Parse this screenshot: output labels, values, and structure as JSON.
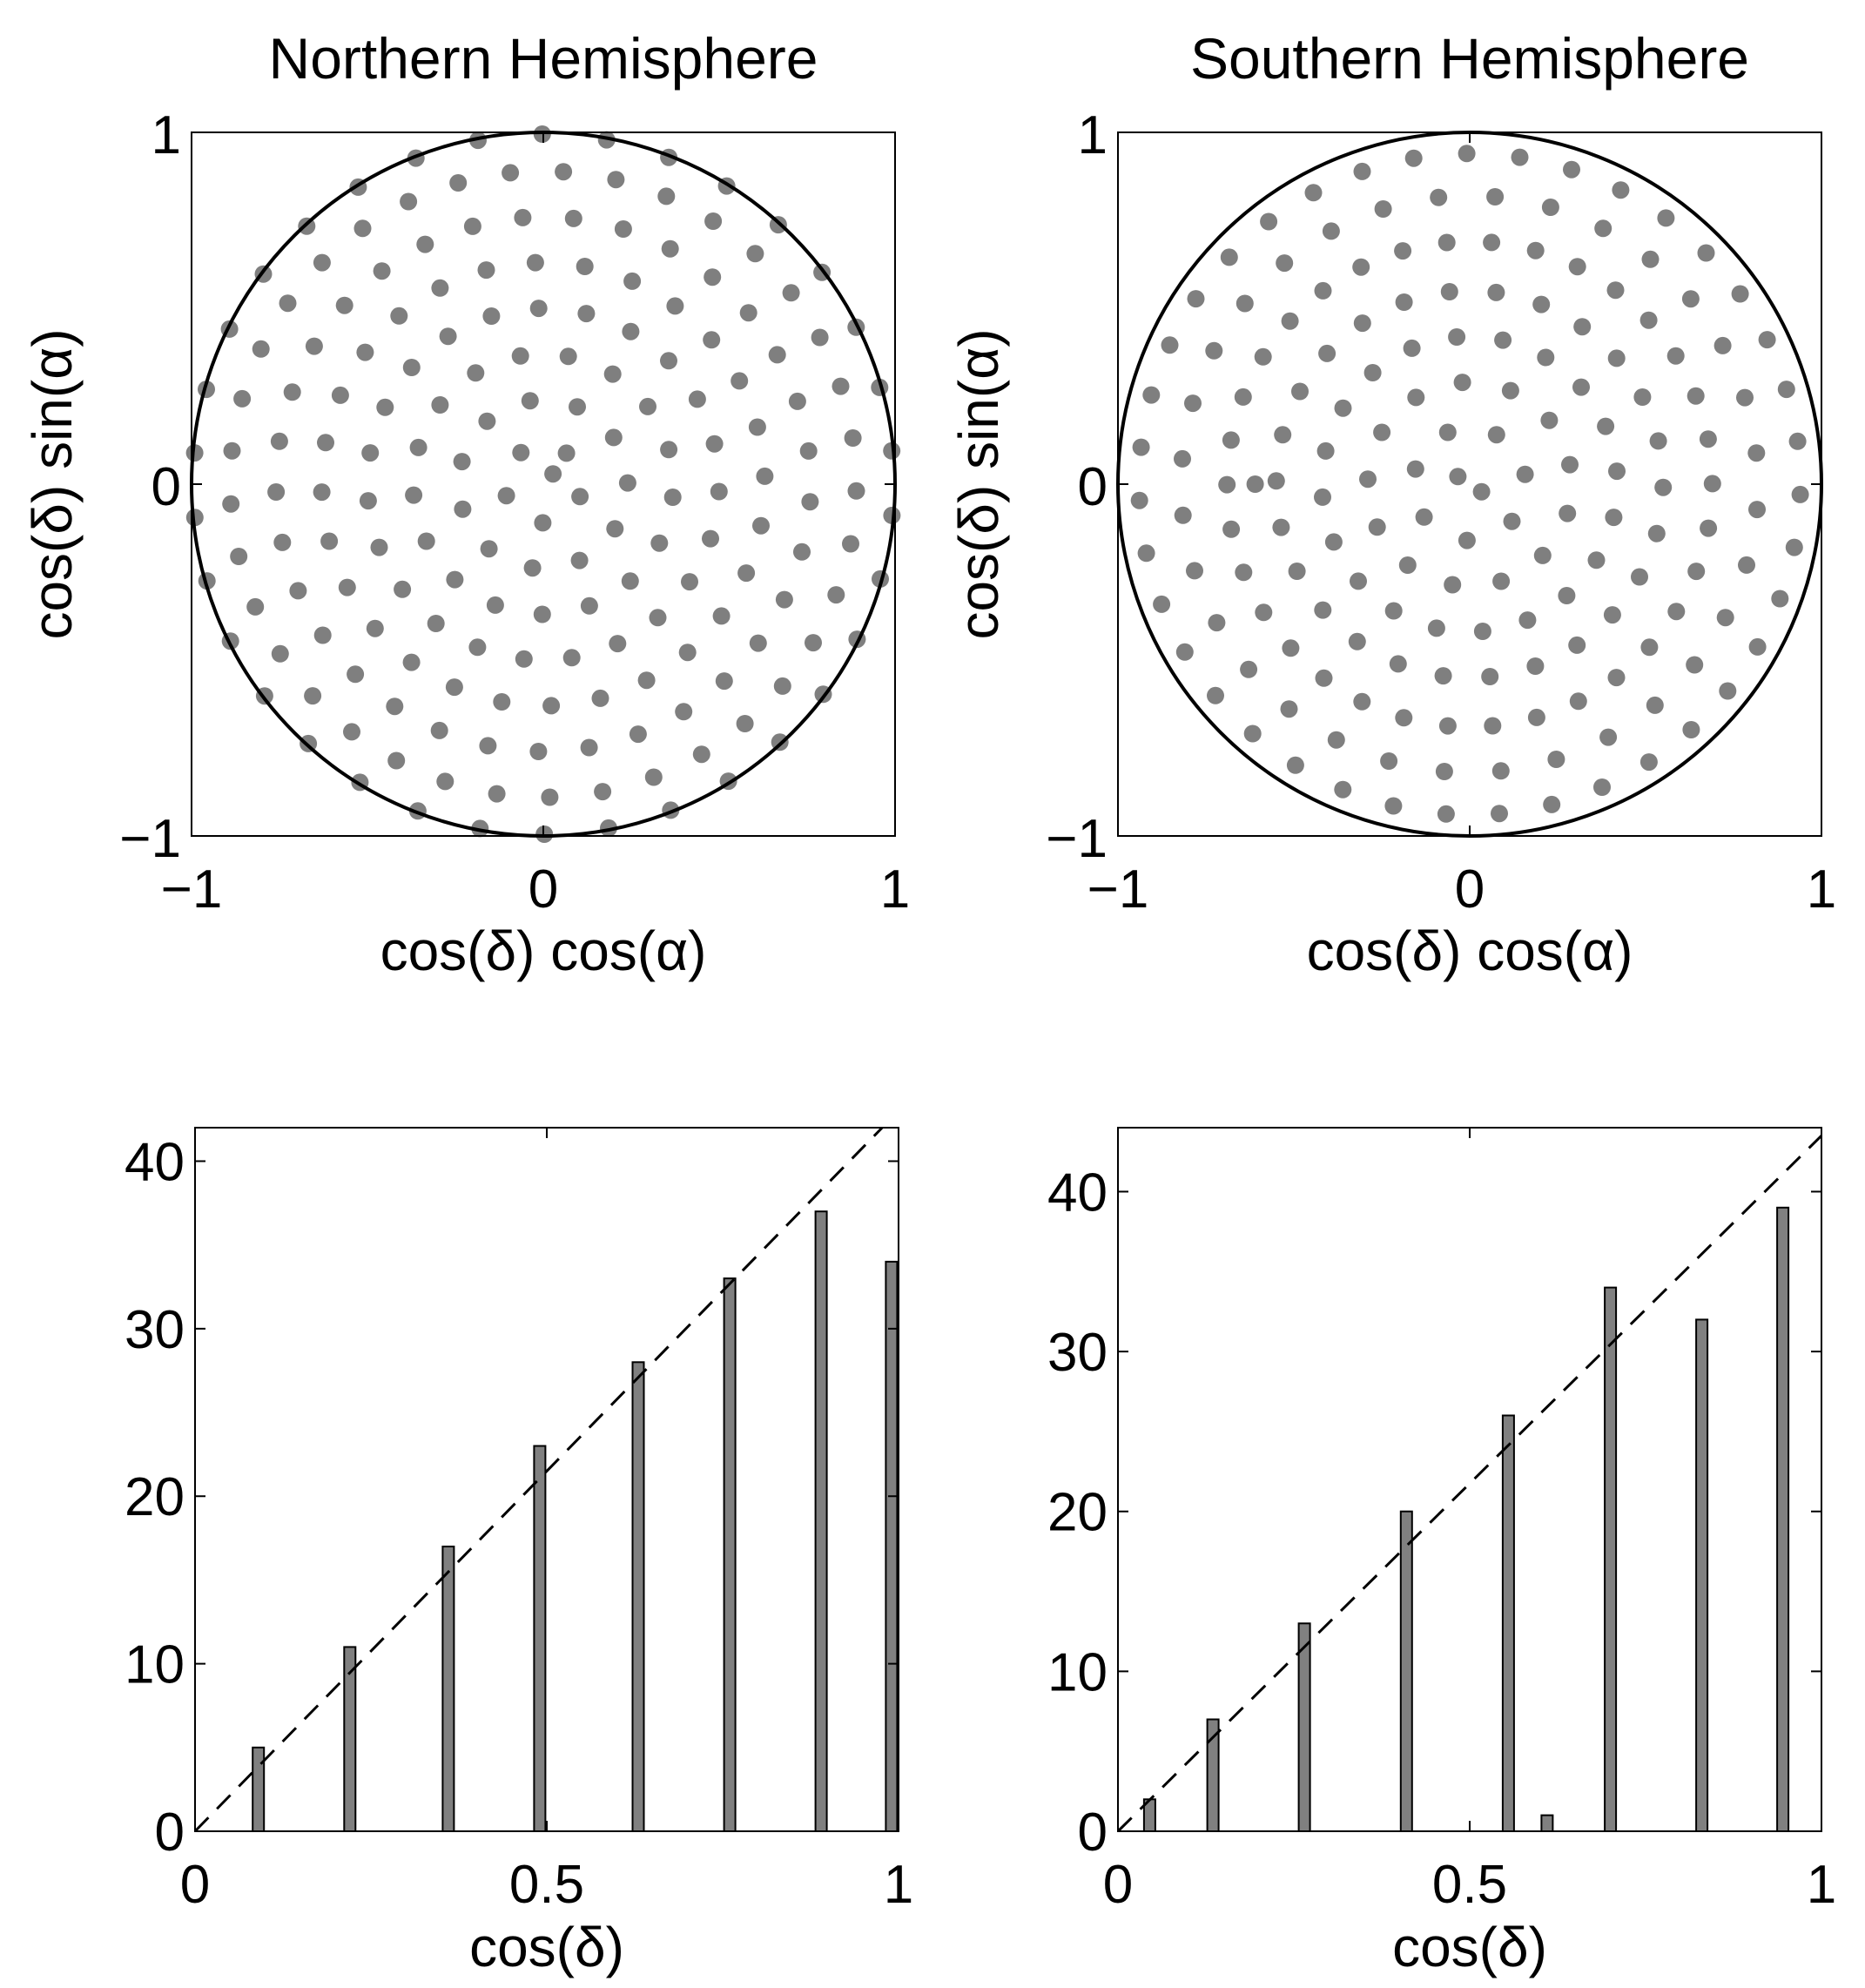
{
  "chart_data": [
    {
      "id": "north-scatter",
      "type": "scatter",
      "title": "Northern Hemisphere",
      "xlabel": "cos(δ) cos(α)",
      "ylabel": "cos(δ) sin(α)",
      "xlim": [
        -1,
        1
      ],
      "ylim": [
        -1,
        1
      ],
      "xticks": [
        "−1",
        "0",
        "1"
      ],
      "yticks": [
        "−1",
        "0",
        "1"
      ],
      "reference": "unit circle",
      "rings": [
        {
          "r": 0.04,
          "n": 1
        },
        {
          "r": 0.11,
          "n": 5
        },
        {
          "r": 0.24,
          "n": 11
        },
        {
          "r": 0.37,
          "n": 17
        },
        {
          "r": 0.5,
          "n": 23
        },
        {
          "r": 0.63,
          "n": 28
        },
        {
          "r": 0.76,
          "n": 33
        },
        {
          "r": 0.89,
          "n": 37
        },
        {
          "r": 0.995,
          "n": 34
        }
      ],
      "point_color": "#7f7f7f"
    },
    {
      "id": "south-scatter",
      "type": "scatter",
      "title": "Southern Hemisphere",
      "xlabel": "cos(δ) cos(α)",
      "ylabel": "cos(δ) sin(α)",
      "xlim": [
        -1,
        1
      ],
      "ylim": [
        -1,
        1
      ],
      "xticks": [
        "−1",
        "0",
        "1"
      ],
      "yticks": [
        "−1",
        "0",
        "1"
      ],
      "reference": "unit circle",
      "rings": [
        {
          "r": 0.04,
          "n": 2
        },
        {
          "r": 0.16,
          "n": 7
        },
        {
          "r": 0.29,
          "n": 13
        },
        {
          "r": 0.42,
          "n": 20
        },
        {
          "r": 0.55,
          "n": 26
        },
        {
          "r": 0.61,
          "n": 1
        },
        {
          "r": 0.69,
          "n": 34
        },
        {
          "r": 0.82,
          "n": 32
        },
        {
          "r": 0.94,
          "n": 39
        }
      ],
      "point_color": "#7f7f7f"
    },
    {
      "id": "north-hist",
      "type": "bar",
      "xlabel": "cos(δ)",
      "ylabel": "",
      "x": [
        0.09,
        0.22,
        0.36,
        0.49,
        0.63,
        0.76,
        0.89,
        0.99
      ],
      "values": [
        5,
        11,
        17,
        23,
        28,
        33,
        37,
        34
      ],
      "xlim": [
        0,
        1
      ],
      "ylim": [
        0,
        42
      ],
      "xticks": [
        0,
        0.5,
        1
      ],
      "xtick_labels": [
        "0",
        "0.5",
        "1"
      ],
      "yticks": [
        0,
        10,
        20,
        30,
        40
      ],
      "ytick_labels": [
        "0",
        "10",
        "20",
        "30",
        "40"
      ],
      "reference_line": {
        "style": "dashed",
        "x": [
          0,
          1
        ],
        "y": [
          0,
          43
        ]
      },
      "bar_color": "#808080"
    },
    {
      "id": "south-hist",
      "type": "bar",
      "xlabel": "cos(δ)",
      "ylabel": "",
      "x": [
        0.045,
        0.135,
        0.265,
        0.41,
        0.555,
        0.61,
        0.7,
        0.83,
        0.945
      ],
      "values": [
        2,
        7,
        13,
        20,
        26,
        1,
        34,
        32,
        39
      ],
      "xlim": [
        0,
        1
      ],
      "ylim": [
        0,
        44
      ],
      "xticks": [
        0,
        0.5,
        1
      ],
      "xtick_labels": [
        "0",
        "0.5",
        "1"
      ],
      "yticks": [
        0,
        10,
        20,
        30,
        40
      ],
      "ytick_labels": [
        "0",
        "10",
        "20",
        "30",
        "40"
      ],
      "reference_line": {
        "style": "dashed",
        "x": [
          0,
          1
        ],
        "y": [
          0,
          43.5
        ]
      },
      "bar_color": "#808080"
    }
  ]
}
